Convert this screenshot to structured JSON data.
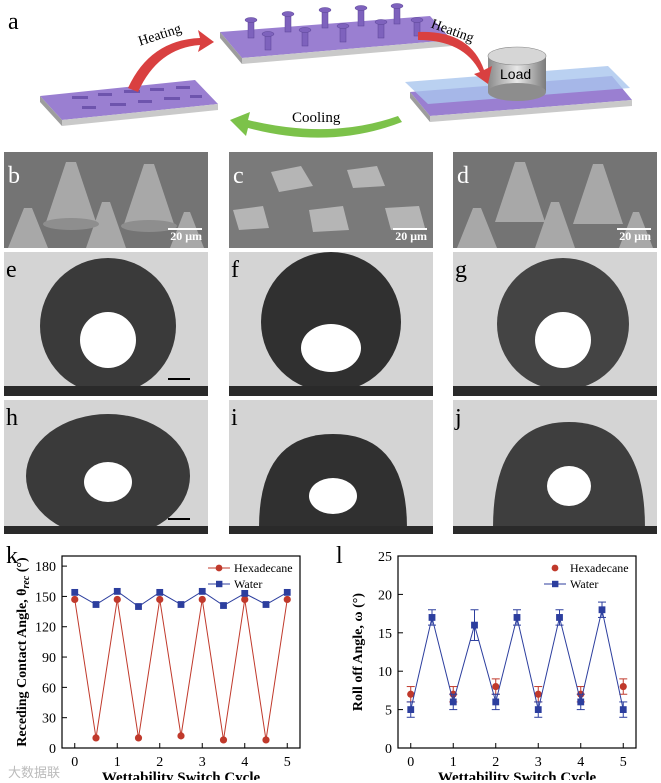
{
  "panel_labels": {
    "a": "a",
    "b": "b",
    "c": "c",
    "d": "d",
    "e": "e",
    "f": "f",
    "g": "g",
    "h": "h",
    "i": "i",
    "j": "j",
    "k": "k",
    "l": "l"
  },
  "schematic": {
    "heating_left": "Heating",
    "heating_right": "Heating",
    "cooling": "Cooling",
    "load": "Load"
  },
  "sem": {
    "b": {
      "scale": "20 μm"
    },
    "c": {
      "scale": "20 μm"
    },
    "d": {
      "scale": "20 μm"
    }
  },
  "watermark": "大数据联",
  "colors": {
    "hexadecane": "#c0392b",
    "water": "#2c3e9e",
    "arrow_red": "#d94040",
    "arrow_green": "#7cc24a",
    "substrate_top": "#9a7fd1"
  },
  "chart_data": [
    {
      "type": "line",
      "panel": "k",
      "xlabel": "Wettability Switch Cycle",
      "ylabel": "Receding Contact Angle, θ",
      "ylabel_sub": "rec",
      "ylabel_unit": "(°)",
      "xlim": [
        -0.3,
        5.3
      ],
      "ylim": [
        0,
        190
      ],
      "xticks": [
        0,
        1,
        2,
        3,
        4,
        5
      ],
      "yticks": [
        0,
        30,
        60,
        90,
        120,
        150,
        180
      ],
      "legend_position": "top-right",
      "series": [
        {
          "name": "Hexadecane",
          "color": "#c0392b",
          "marker": "circle",
          "x": [
            0,
            0.5,
            1,
            1.5,
            2,
            2.5,
            3,
            3.5,
            4,
            4.5,
            5
          ],
          "y": [
            147,
            10,
            147,
            10,
            147,
            12,
            147,
            8,
            147,
            8,
            147
          ]
        },
        {
          "name": "Water",
          "color": "#2c3e9e",
          "marker": "square",
          "x": [
            0,
            0.5,
            1,
            1.5,
            2,
            2.5,
            3,
            3.5,
            4,
            4.5,
            5
          ],
          "y": [
            154,
            142,
            155,
            140,
            154,
            142,
            155,
            141,
            153,
            142,
            154
          ]
        }
      ]
    },
    {
      "type": "line",
      "panel": "l",
      "xlabel": "Wettability Switch Cycle",
      "ylabel": "Roll off Angle, ω",
      "ylabel_unit": "(°)",
      "xlim": [
        -0.3,
        5.3
      ],
      "ylim": [
        0,
        25
      ],
      "xticks": [
        0,
        1,
        2,
        3,
        4,
        5
      ],
      "yticks": [
        0,
        5,
        10,
        15,
        20,
        25
      ],
      "legend_position": "top-right",
      "series": [
        {
          "name": "Hexadecane",
          "color": "#c0392b",
          "marker": "circle",
          "x": [
            0,
            1,
            2,
            3,
            4,
            5
          ],
          "y": [
            7,
            7,
            8,
            7,
            7,
            8
          ],
          "err": [
            1,
            1,
            1,
            1,
            1,
            1
          ]
        },
        {
          "name": "Water",
          "color": "#2c3e9e",
          "marker": "square",
          "x": [
            0,
            0.5,
            1,
            1.5,
            2,
            2.5,
            3,
            3.5,
            4,
            4.5,
            5
          ],
          "y": [
            5,
            17,
            6,
            16,
            6,
            17,
            5,
            17,
            6,
            18,
            5
          ],
          "err": [
            1,
            1,
            1,
            2,
            1,
            1,
            1,
            1,
            1,
            1,
            1
          ]
        }
      ]
    }
  ]
}
